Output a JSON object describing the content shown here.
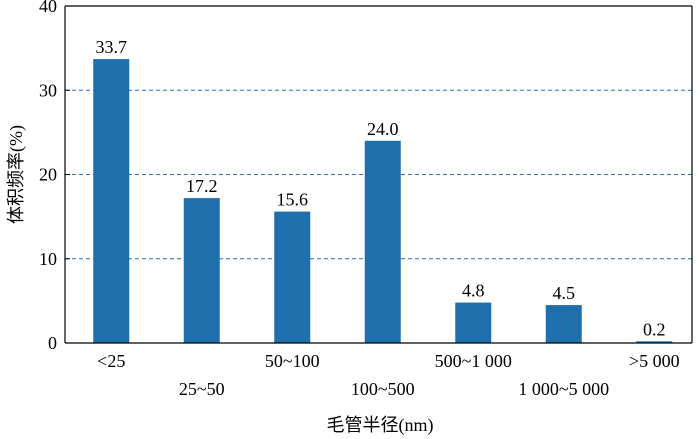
{
  "chart_data": {
    "type": "bar",
    "categories": [
      "<25",
      "25~50",
      "50~100",
      "100~500",
      "500~1 000",
      "1 000~5 000",
      ">5 000"
    ],
    "values": [
      33.7,
      17.2,
      15.6,
      24.0,
      4.8,
      4.5,
      0.2
    ],
    "data_labels": [
      "33.7",
      "17.2",
      "15.6",
      "24.0",
      "4.8",
      "4.5",
      "0.2"
    ],
    "xlabel": "毛管半径(nm)",
    "ylabel": "体积频率(%)",
    "ylim": [
      0,
      40
    ],
    "yticks": [
      0,
      10,
      20,
      30,
      40
    ],
    "grid": true,
    "bar_color": "#1f6fad",
    "grid_color": "#2a6fb0"
  }
}
